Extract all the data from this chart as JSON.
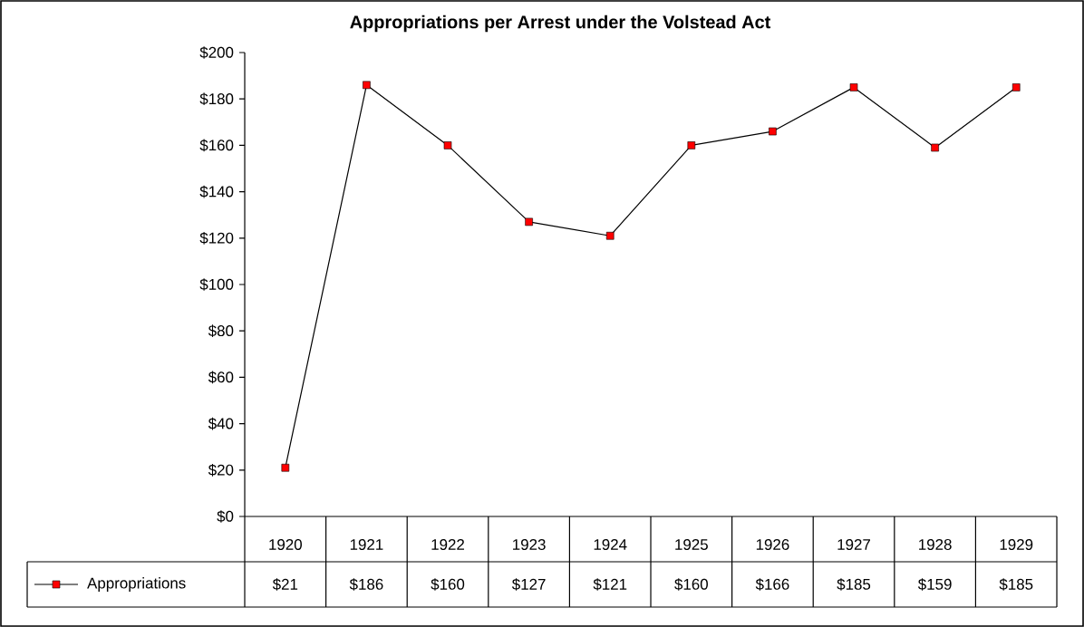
{
  "chart_data": {
    "type": "line",
    "title": "Appropriations per Arrest under the Volstead Act",
    "categories": [
      "1920",
      "1921",
      "1922",
      "1923",
      "1924",
      "1925",
      "1926",
      "1927",
      "1928",
      "1929"
    ],
    "series": [
      {
        "name": "Appropriations",
        "color": "#ff0000",
        "values": [
          21,
          186,
          160,
          127,
          121,
          160,
          166,
          185,
          159,
          185
        ],
        "value_labels": [
          "$21",
          "$186",
          "$160",
          "$127",
          "$121",
          "$160",
          "$166",
          "$185",
          "$159",
          "$185"
        ]
      }
    ],
    "ylim": [
      0,
      200
    ],
    "yticks": [
      {
        "value": 0,
        "label": "$0"
      },
      {
        "value": 20,
        "label": "$20"
      },
      {
        "value": 40,
        "label": "$40"
      },
      {
        "value": 60,
        "label": "$60"
      },
      {
        "value": 80,
        "label": "$80"
      },
      {
        "value": 100,
        "label": "$100"
      },
      {
        "value": 120,
        "label": "$120"
      },
      {
        "value": 140,
        "label": "$140"
      },
      {
        "value": 160,
        "label": "$160"
      },
      {
        "value": 180,
        "label": "$180"
      },
      {
        "value": 200,
        "label": "$200"
      }
    ],
    "grid": false,
    "legend": "bottom",
    "marker": "square",
    "line_style": "solid"
  }
}
